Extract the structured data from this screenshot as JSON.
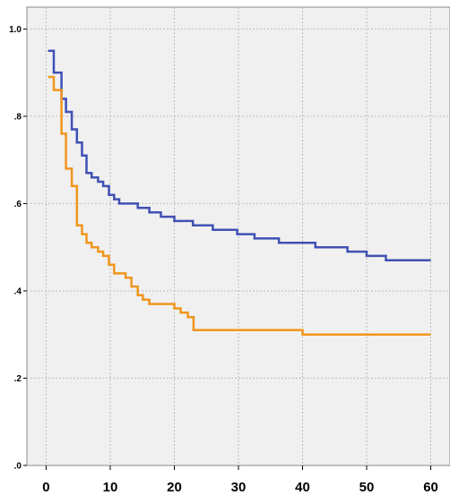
{
  "chart_data": {
    "type": "line",
    "title": "",
    "xlabel": "",
    "ylabel": "",
    "xlim": [
      -3,
      63
    ],
    "ylim": [
      0,
      1.05
    ],
    "x_ticks": [
      0,
      10,
      20,
      30,
      40,
      50,
      60
    ],
    "x_tick_labels": [
      "0",
      "10",
      "20",
      "30",
      "40",
      "50",
      "60"
    ],
    "y_ticks": [
      0,
      0.2,
      0.4,
      0.6,
      0.8,
      1.0
    ],
    "y_tick_labels": [
      ".0",
      ".2",
      ".4",
      ".6",
      ".8",
      "1.0"
    ],
    "grid": true,
    "background": "#f0f0f0",
    "series": [
      {
        "color": "#3f51b5",
        "step": true,
        "x": [
          0.3,
          1.2,
          2.4,
          3.1,
          4.0,
          4.8,
          5.6,
          6.3,
          7.1,
          8.1,
          8.9,
          9.8,
          10.6,
          11.4,
          12.4,
          13.3,
          14.3,
          15.1,
          16.1,
          17.0,
          17.9,
          18.9,
          20.0,
          21.0,
          21.8,
          22.9,
          24.0,
          25.0,
          26.0,
          27.3,
          28.5,
          29.8,
          31.2,
          32.5,
          33.8,
          35.0,
          36.3,
          37.8,
          39.8,
          42.0,
          44.5,
          47.0,
          48.5,
          50.0,
          51.5,
          53.0,
          55.0,
          60.0
        ],
        "y": [
          0.95,
          0.9,
          0.84,
          0.81,
          0.77,
          0.74,
          0.71,
          0.67,
          0.66,
          0.65,
          0.64,
          0.62,
          0.61,
          0.6,
          0.6,
          0.6,
          0.59,
          0.59,
          0.58,
          0.58,
          0.57,
          0.57,
          0.56,
          0.56,
          0.56,
          0.55,
          0.55,
          0.55,
          0.54,
          0.54,
          0.54,
          0.53,
          0.53,
          0.52,
          0.52,
          0.52,
          0.51,
          0.51,
          0.51,
          0.5,
          0.5,
          0.49,
          0.49,
          0.48,
          0.48,
          0.47,
          0.47,
          0.47
        ]
      },
      {
        "color": "#f0961e",
        "step": true,
        "x": [
          0.3,
          1.2,
          2.4,
          3.1,
          4.0,
          4.8,
          5.6,
          6.3,
          7.1,
          8.1,
          8.9,
          9.8,
          10.6,
          11.4,
          12.4,
          13.3,
          14.3,
          15.1,
          16.1,
          17.0,
          18.0,
          19.0,
          20.0,
          21.0,
          22.1,
          23.0,
          40.0,
          60.0
        ],
        "y": [
          0.89,
          0.86,
          0.76,
          0.68,
          0.64,
          0.55,
          0.53,
          0.51,
          0.5,
          0.49,
          0.48,
          0.46,
          0.44,
          0.44,
          0.43,
          0.41,
          0.39,
          0.38,
          0.37,
          0.37,
          0.37,
          0.37,
          0.36,
          0.35,
          0.34,
          0.31,
          0.3,
          0.3
        ]
      }
    ]
  }
}
